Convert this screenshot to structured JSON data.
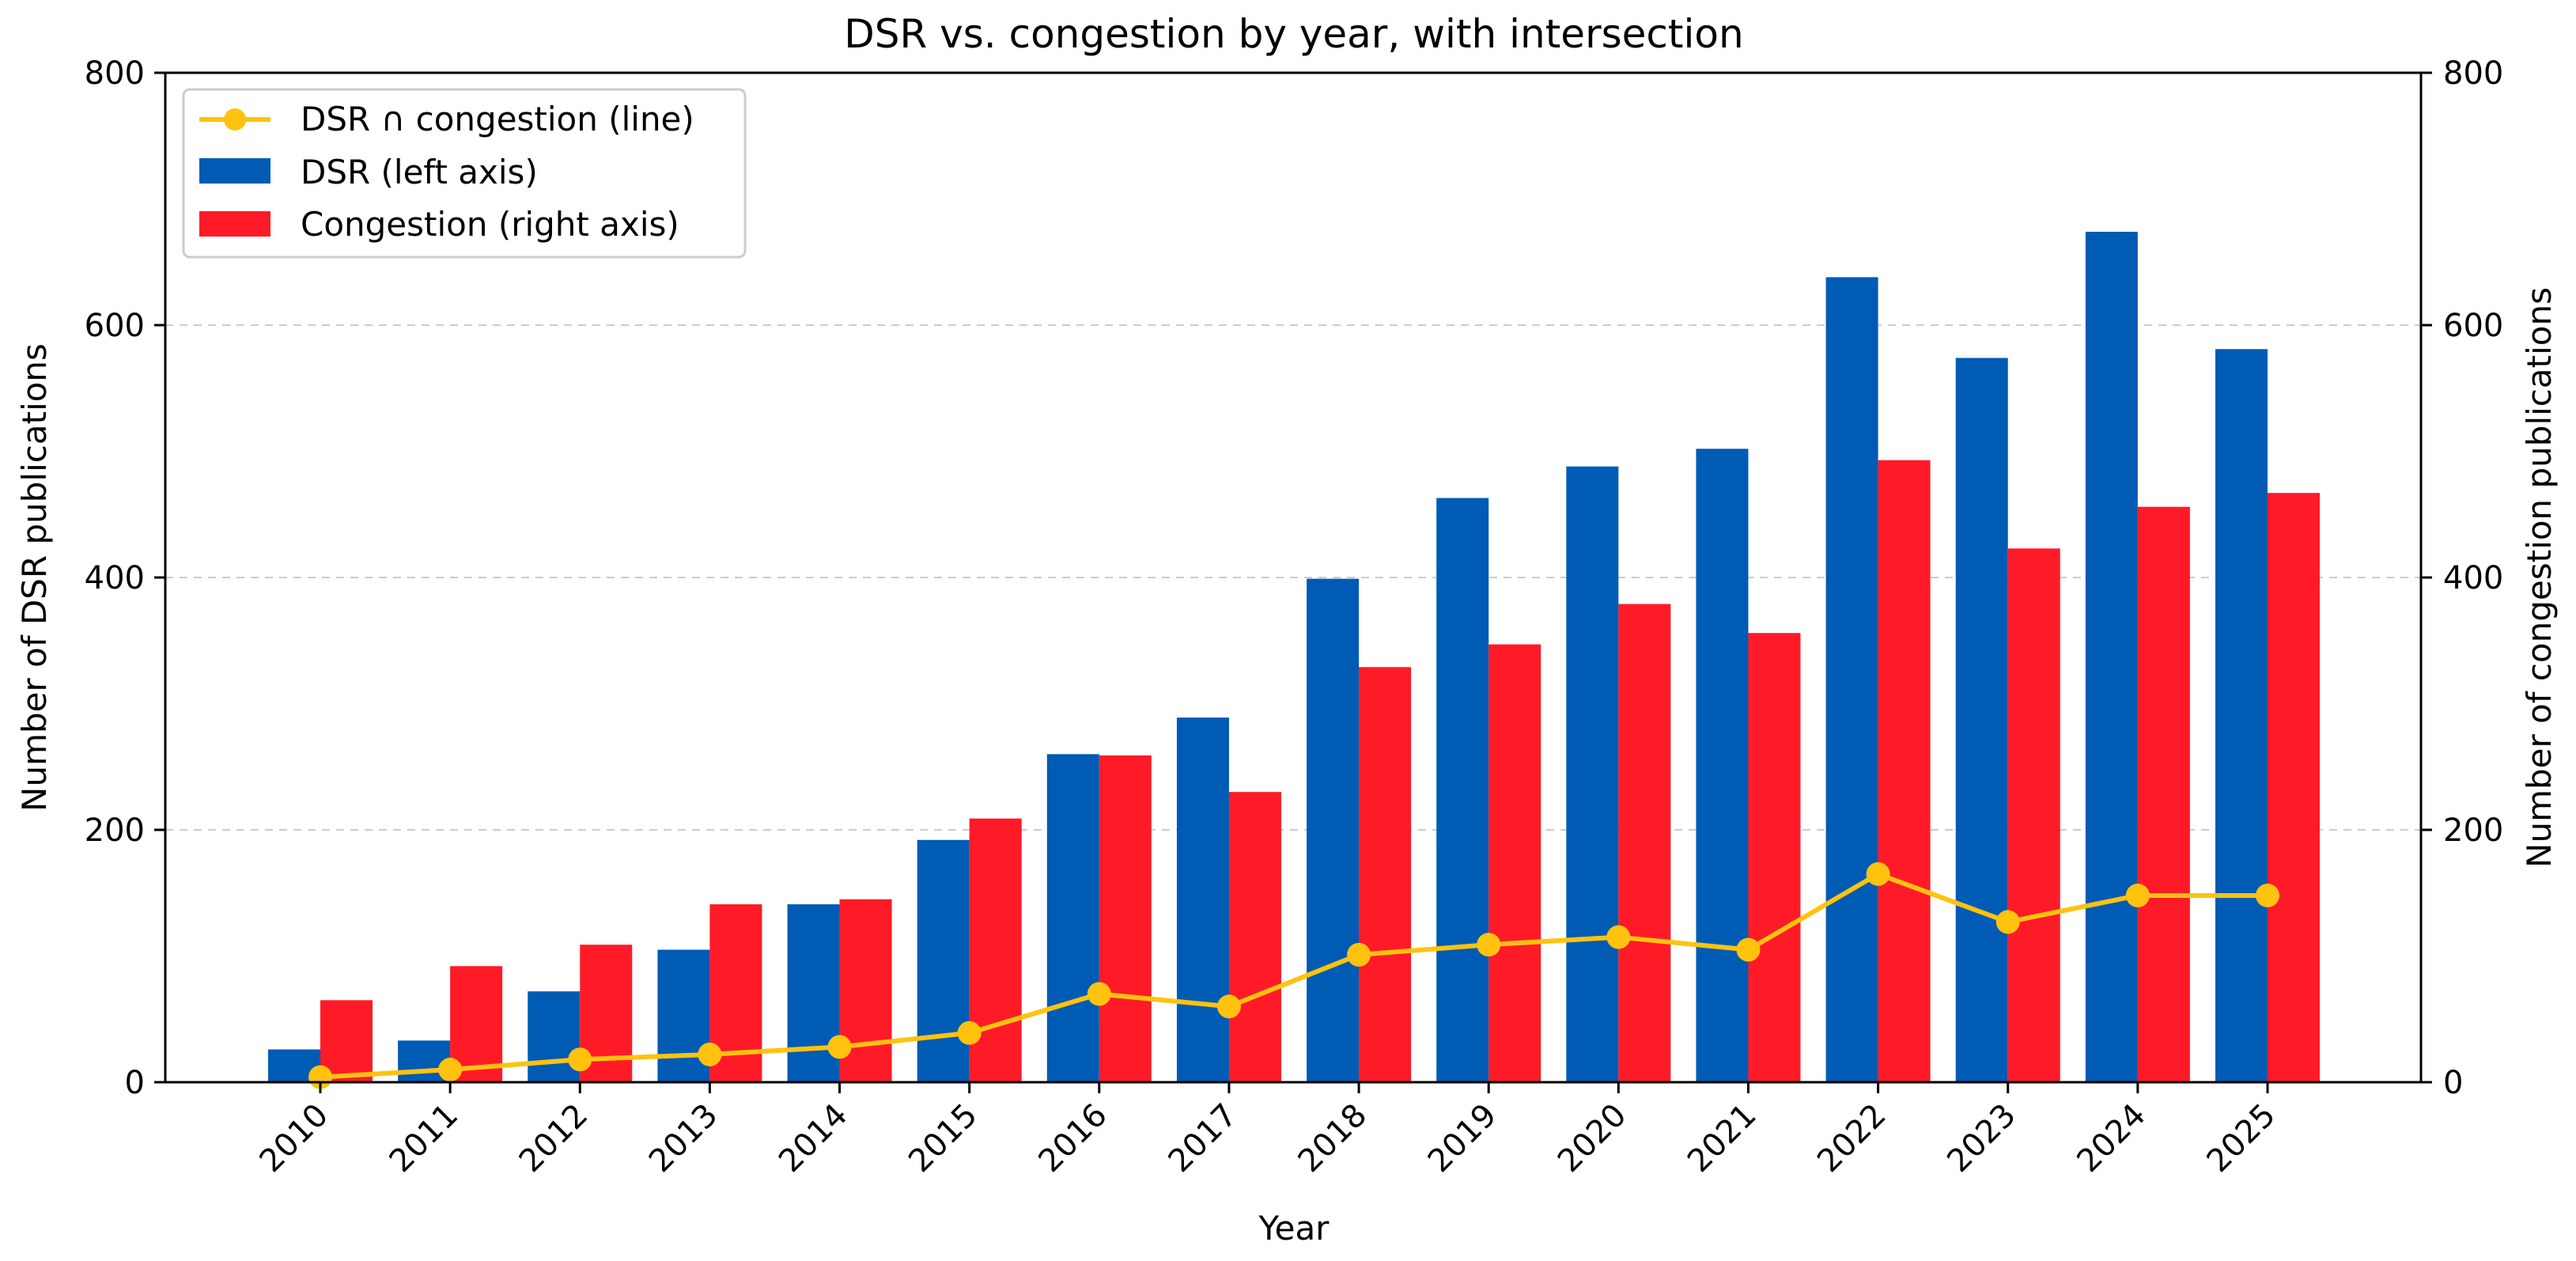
{
  "chart_data": {
    "type": "bar",
    "title": "DSR vs. congestion by year, with intersection",
    "xlabel": "Year",
    "ylabel": "Number of DSR publications",
    "y2label": "Number of congestion publications",
    "categories": [
      "2010",
      "2011",
      "2012",
      "2013",
      "2014",
      "2015",
      "2016",
      "2017",
      "2018",
      "2019",
      "2020",
      "2021",
      "2022",
      "2023",
      "2024",
      "2025"
    ],
    "ylim": [
      0,
      800
    ],
    "y2lim": [
      0,
      800
    ],
    "yticks": [
      0,
      200,
      400,
      600,
      800
    ],
    "y2ticks": [
      0,
      200,
      400,
      600,
      800
    ],
    "grid": "horizontal dashed",
    "legend_position": "top-left",
    "series": [
      {
        "name": "DSR (left axis)",
        "type": "bar",
        "axis": "left",
        "color": "#005bb5",
        "values": [
          26,
          33,
          72,
          105,
          141,
          192,
          260,
          289,
          399,
          463,
          488,
          502,
          638,
          574,
          674,
          581
        ]
      },
      {
        "name": "Congestion (right axis)",
        "type": "bar",
        "axis": "right",
        "color": "#ff1a27",
        "values": [
          65,
          92,
          109,
          141,
          145,
          209,
          259,
          230,
          329,
          347,
          379,
          356,
          493,
          423,
          456,
          467
        ]
      },
      {
        "name": "DSR ∩ congestion (line)",
        "type": "line",
        "axis": "left",
        "color": "#ffc20e",
        "values": [
          4,
          10,
          18,
          22,
          28,
          39,
          70,
          60,
          101,
          109,
          115,
          105,
          165,
          127,
          148,
          148
        ]
      }
    ]
  }
}
